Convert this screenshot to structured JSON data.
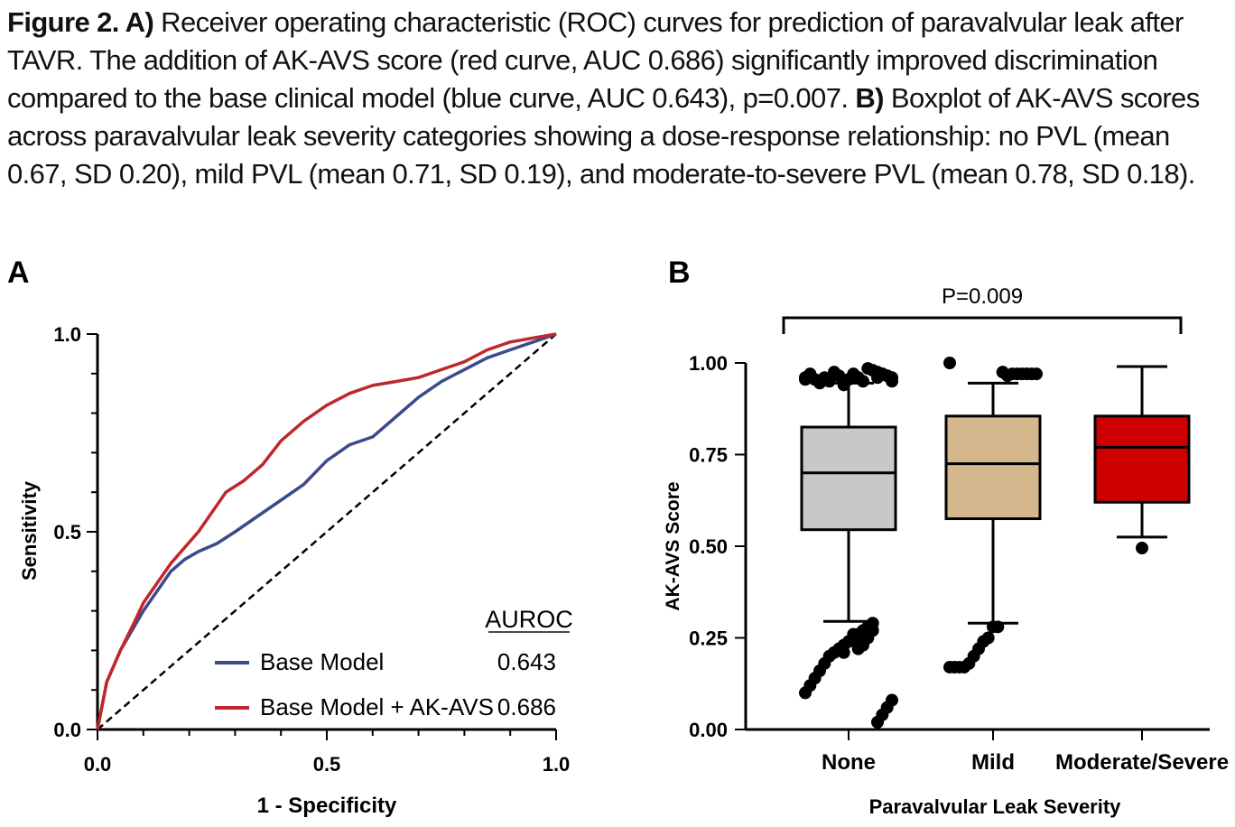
{
  "caption": {
    "label": "Figure 2. A)",
    "part_a": " Receiver operating characteristic (ROC) curves for prediction of paravalvular leak after TAVR. The addition of AK-AVS score (red curve, AUC 0.686) significantly improved discrimination compared to the base clinical model (blue curve, AUC 0.643), p=0.007. ",
    "label_b": "B)",
    "part_b": " Boxplot of AK-AVS scores across paravalvular leak severity categories showing a dose-response relationship: no PVL (mean 0.67, SD 0.20), mild PVL (mean 0.71, SD 0.19), and moderate-to-severe PVL (mean 0.78, SD 0.18)."
  },
  "chart_data": [
    {
      "panel": "A",
      "type": "line",
      "xlabel": "1 - Specificity",
      "ylabel": "Sensitivity",
      "xlim": [
        0,
        1
      ],
      "ylim": [
        0,
        1
      ],
      "x_ticks": [
        "0.0",
        "0.5",
        "1.0"
      ],
      "y_ticks": [
        "0.0",
        "0.5",
        "1.0"
      ],
      "legend_header": "AUROC",
      "legend_position": "bottom-right",
      "reference_line": "diagonal dashed",
      "series": [
        {
          "name": "Base Model",
          "auroc": "0.643",
          "color": "#3b4a8c",
          "x": [
            0,
            0.02,
            0.05,
            0.08,
            0.1,
            0.13,
            0.16,
            0.19,
            0.22,
            0.26,
            0.3,
            0.35,
            0.4,
            0.45,
            0.5,
            0.55,
            0.6,
            0.65,
            0.7,
            0.75,
            0.8,
            0.85,
            0.9,
            0.95,
            1.0
          ],
          "y": [
            0,
            0.12,
            0.2,
            0.26,
            0.3,
            0.35,
            0.4,
            0.43,
            0.45,
            0.47,
            0.5,
            0.54,
            0.58,
            0.62,
            0.68,
            0.72,
            0.74,
            0.79,
            0.84,
            0.88,
            0.91,
            0.94,
            0.96,
            0.98,
            1.0
          ]
        },
        {
          "name": "Base Model + AK-AVS",
          "auroc": "0.686",
          "color": "#c0262d",
          "x": [
            0,
            0.02,
            0.05,
            0.08,
            0.1,
            0.13,
            0.16,
            0.19,
            0.22,
            0.25,
            0.28,
            0.32,
            0.36,
            0.4,
            0.45,
            0.5,
            0.55,
            0.6,
            0.65,
            0.7,
            0.75,
            0.8,
            0.85,
            0.9,
            0.95,
            1.0
          ],
          "y": [
            0,
            0.12,
            0.2,
            0.27,
            0.32,
            0.37,
            0.42,
            0.46,
            0.5,
            0.55,
            0.6,
            0.63,
            0.67,
            0.73,
            0.78,
            0.82,
            0.85,
            0.87,
            0.88,
            0.89,
            0.91,
            0.93,
            0.96,
            0.98,
            0.99,
            1.0
          ]
        }
      ]
    },
    {
      "panel": "B",
      "type": "box",
      "xlabel": "Paravalvular Leak Severity",
      "ylabel": "AK-AVS Score",
      "ylim": [
        0,
        1
      ],
      "y_ticks": [
        "0.00",
        "0.25",
        "0.50",
        "0.75",
        "1.00"
      ],
      "annotation": "P=0.009",
      "categories": [
        "None",
        "Mild",
        "Moderate/Severe"
      ],
      "boxes": [
        {
          "category": "None",
          "color": "#c8c8c8",
          "whisker_low": 0.295,
          "q1": 0.545,
          "median": 0.7,
          "q3": 0.825,
          "whisker_high": 0.945,
          "outliers": [
            0.955,
            0.96,
            0.965,
            0.97,
            0.975,
            0.98,
            0.985,
            0.95,
            0.96,
            0.97,
            0.955,
            0.94,
            0.965,
            0.975,
            0.95,
            0.96,
            0.945,
            0.955,
            0.97,
            0.96,
            0.95,
            0.965,
            0.97,
            0.96,
            0.29,
            0.28,
            0.27,
            0.26,
            0.25,
            0.24,
            0.23,
            0.22,
            0.21,
            0.2,
            0.18,
            0.16,
            0.14,
            0.12,
            0.1,
            0.08,
            0.06,
            0.04,
            0.02,
            0.27,
            0.25,
            0.23,
            0.22,
            0.26,
            0.24,
            0.21
          ]
        },
        {
          "category": "Mild",
          "color": "#d4b78c",
          "whisker_low": 0.29,
          "q1": 0.575,
          "median": 0.725,
          "q3": 0.855,
          "whisker_high": 0.945,
          "outliers": [
            1.0,
            0.97,
            0.97,
            0.97,
            0.97,
            0.97,
            0.97,
            0.965,
            0.975,
            0.28,
            0.28,
            0.25,
            0.24,
            0.22,
            0.2,
            0.18,
            0.17,
            0.17,
            0.17,
            0.17
          ]
        },
        {
          "category": "Moderate/Severe",
          "color": "#cc0000",
          "whisker_low": 0.525,
          "q1": 0.62,
          "median": 0.77,
          "q3": 0.855,
          "whisker_high": 0.99,
          "outliers": [
            0.495
          ]
        }
      ]
    }
  ]
}
